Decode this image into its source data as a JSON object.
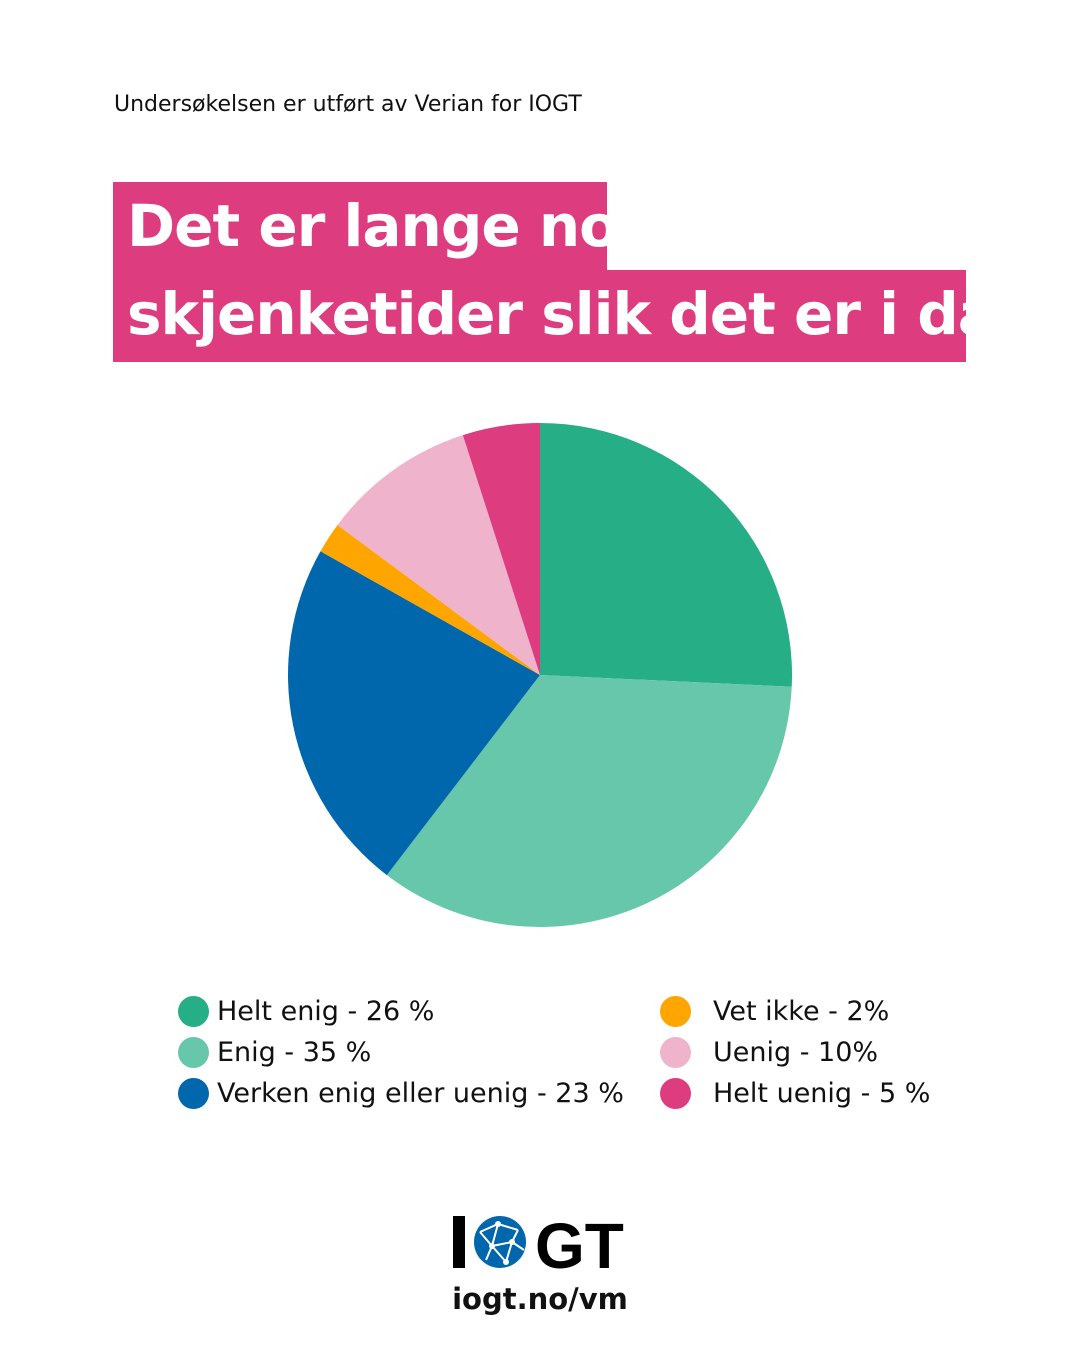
{
  "source_note": "Undersøkelsen er utført av Verian for IOGT",
  "title_line1": "Det er lange nok",
  "title_line2": "skjenketider  slik det er i dag",
  "chart_data": {
    "type": "pie",
    "title": "Det er lange nok skjenketider slik det er i dag",
    "start": "top, clockwise",
    "legend_placement": "bottom",
    "slices": [
      {
        "name": "Helt enig",
        "value": 26,
        "label": "Helt enig - 26 %",
        "color": "#26ae87"
      },
      {
        "name": "Enig",
        "value": 35,
        "label": "Enig - 35 %",
        "color": "#67c7aa"
      },
      {
        "name": "Verken enig eller uenig",
        "value": 23,
        "label": "Verken enig eller uenig - 23 %",
        "color": "#0067ad"
      },
      {
        "name": "Vet ikke",
        "value": 2,
        "label": "Vet ikke - 2%",
        "color": "#ffa500"
      },
      {
        "name": "Uenig",
        "value": 10,
        "label": "Uenig - 10%",
        "color": "#f0b3cc"
      },
      {
        "name": "Helt uenig",
        "value": 5,
        "label": "Helt uenig - 5 %",
        "color": "#dd3c7f"
      }
    ]
  },
  "logo_text": "IOGT",
  "url": "iogt.no/vm"
}
